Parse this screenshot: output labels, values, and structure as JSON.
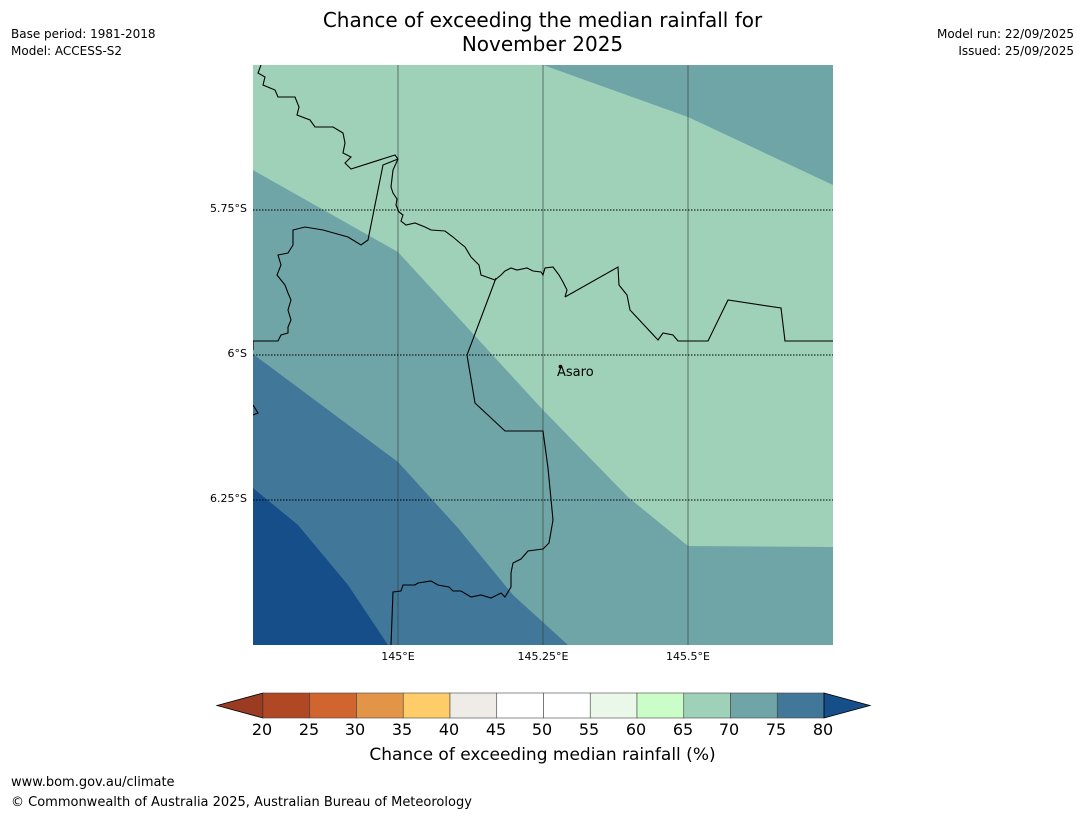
{
  "title": {
    "line1": "Chance of exceeding the median rainfall for",
    "line2": "November 2025"
  },
  "meta_left": {
    "base_period": "Base period: 1981-2018",
    "model": "Model: ACCESS-S2"
  },
  "meta_right": {
    "model_run": "Model run: 22/09/2025",
    "issued": "Issued: 25/09/2025"
  },
  "map": {
    "lat_labels": [
      "5.75°S",
      "6°S",
      "6.25°S"
    ],
    "lon_labels": [
      "145°E",
      "145.25°E",
      "145.5°E"
    ],
    "place": "Asaro",
    "region_values_pct": [
      65,
      70,
      75,
      80
    ],
    "colors": {
      "c65": "#9fd1b9",
      "c70": "#70a5a8",
      "c75": "#417899",
      "c80": "#154e88"
    }
  },
  "colorbar": {
    "ticks": [
      "20",
      "25",
      "30",
      "35",
      "40",
      "45",
      "50",
      "55",
      "60",
      "65",
      "70",
      "75",
      "80"
    ],
    "colors": [
      "#b14824",
      "#d06530",
      "#e39547",
      "#fecc68",
      "#efebe6",
      "#ffffff",
      "#ffffff",
      "#eaf8e9",
      "#cbfdc8",
      "#9fd1b9",
      "#70a5a8",
      "#417899"
    ],
    "under_color": "#9a3b22",
    "over_color": "#154e88",
    "label": "Chance of exceeding median rainfall (%)"
  },
  "footer": {
    "url": "www.bom.gov.au/climate",
    "copyright": "© Commonwealth of Australia 2025, Australian Bureau of Meteorology"
  }
}
